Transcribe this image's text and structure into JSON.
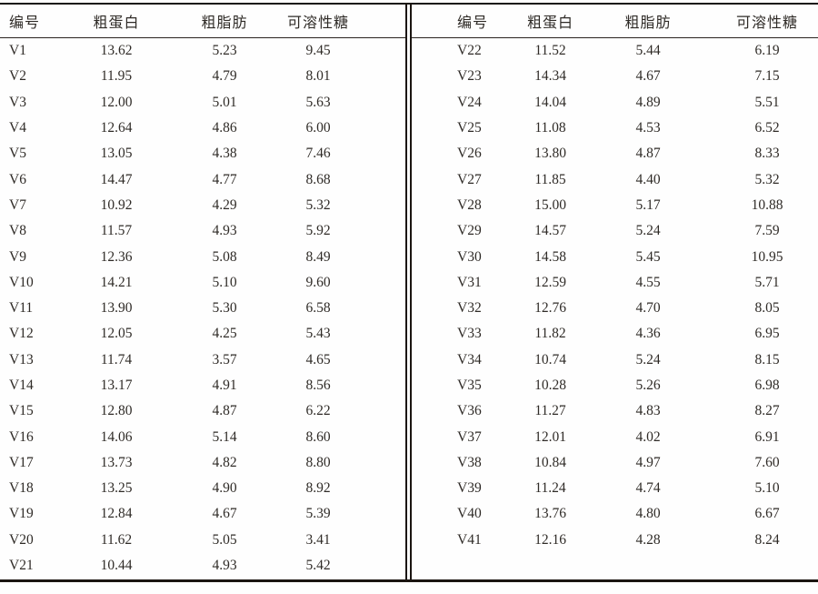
{
  "table": {
    "headers": [
      "编号",
      "粗蛋白",
      "粗脂肪",
      "可溶性糖"
    ],
    "left_rows": [
      [
        "V1",
        "13.62",
        "5.23",
        "9.45"
      ],
      [
        "V2",
        "11.95",
        "4.79",
        "8.01"
      ],
      [
        "V3",
        "12.00",
        "5.01",
        "5.63"
      ],
      [
        "V4",
        "12.64",
        "4.86",
        "6.00"
      ],
      [
        "V5",
        "13.05",
        "4.38",
        "7.46"
      ],
      [
        "V6",
        "14.47",
        "4.77",
        "8.68"
      ],
      [
        "V7",
        "10.92",
        "4.29",
        "5.32"
      ],
      [
        "V8",
        "11.57",
        "4.93",
        "5.92"
      ],
      [
        "V9",
        "12.36",
        "5.08",
        "8.49"
      ],
      [
        "V10",
        "14.21",
        "5.10",
        "9.60"
      ],
      [
        "V11",
        "13.90",
        "5.30",
        "6.58"
      ],
      [
        "V12",
        "12.05",
        "4.25",
        "5.43"
      ],
      [
        "V13",
        "11.74",
        "3.57",
        "4.65"
      ],
      [
        "V14",
        "13.17",
        "4.91",
        "8.56"
      ],
      [
        "V15",
        "12.80",
        "4.87",
        "6.22"
      ],
      [
        "V16",
        "14.06",
        "5.14",
        "8.60"
      ],
      [
        "V17",
        "13.73",
        "4.82",
        "8.80"
      ],
      [
        "V18",
        "13.25",
        "4.90",
        "8.92"
      ],
      [
        "V19",
        "12.84",
        "4.67",
        "5.39"
      ],
      [
        "V20",
        "11.62",
        "5.05",
        "3.41"
      ],
      [
        "V21",
        "10.44",
        "4.93",
        "5.42"
      ]
    ],
    "right_rows": [
      [
        "V22",
        "11.52",
        "5.44",
        "6.19"
      ],
      [
        "V23",
        "14.34",
        "4.67",
        "7.15"
      ],
      [
        "V24",
        "14.04",
        "4.89",
        "5.51"
      ],
      [
        "V25",
        "11.08",
        "4.53",
        "6.52"
      ],
      [
        "V26",
        "13.80",
        "4.87",
        "8.33"
      ],
      [
        "V27",
        "11.85",
        "4.40",
        "5.32"
      ],
      [
        "V28",
        "15.00",
        "5.17",
        "10.88"
      ],
      [
        "V29",
        "14.57",
        "5.24",
        "7.59"
      ],
      [
        "V30",
        "14.58",
        "5.45",
        "10.95"
      ],
      [
        "V31",
        "12.59",
        "4.55",
        "5.71"
      ],
      [
        "V32",
        "12.76",
        "4.70",
        "8.05"
      ],
      [
        "V33",
        "11.82",
        "4.36",
        "6.95"
      ],
      [
        "V34",
        "10.74",
        "5.24",
        "8.15"
      ],
      [
        "V35",
        "10.28",
        "5.26",
        "6.98"
      ],
      [
        "V36",
        "11.27",
        "4.83",
        "8.27"
      ],
      [
        "V37",
        "12.01",
        "4.02",
        "6.91"
      ],
      [
        "V38",
        "10.84",
        "4.97",
        "7.60"
      ],
      [
        "V39",
        "11.24",
        "4.74",
        "5.10"
      ],
      [
        "V40",
        "13.76",
        "4.80",
        "6.67"
      ],
      [
        "V41",
        "12.16",
        "4.28",
        "8.24"
      ]
    ]
  },
  "colors": {
    "text": "#2f2b27",
    "rule": "#1b1511",
    "background": "#fefefe"
  }
}
